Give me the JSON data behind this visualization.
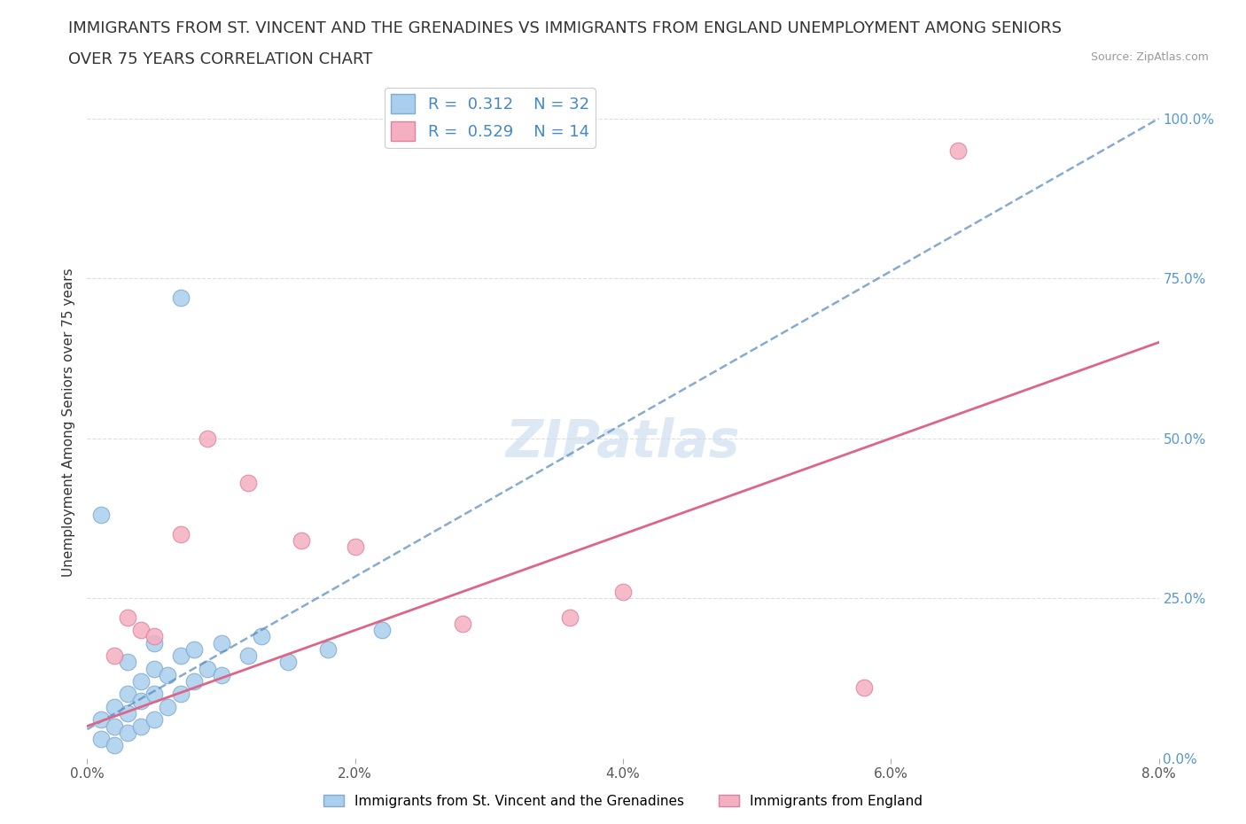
{
  "title_line1": "IMMIGRANTS FROM ST. VINCENT AND THE GRENADINES VS IMMIGRANTS FROM ENGLAND UNEMPLOYMENT AMONG SENIORS",
  "title_line2": "OVER 75 YEARS CORRELATION CHART",
  "source": "Source: ZipAtlas.com",
  "ylabel": "Unemployment Among Seniors over 75 years",
  "xlim": [
    0,
    0.08
  ],
  "ylim": [
    0,
    1.05
  ],
  "xtick_labels": [
    "0.0%",
    "2.0%",
    "4.0%",
    "6.0%",
    "8.0%"
  ],
  "xtick_values": [
    0.0,
    0.02,
    0.04,
    0.06,
    0.08
  ],
  "ytick_labels": [
    "0.0%",
    "25.0%",
    "50.0%",
    "75.0%",
    "100.0%"
  ],
  "ytick_values": [
    0.0,
    0.25,
    0.5,
    0.75,
    1.0
  ],
  "blue_label": "Immigrants from St. Vincent and the Grenadines",
  "pink_label": "Immigrants from England",
  "blue_R": 0.312,
  "blue_N": 32,
  "pink_R": 0.529,
  "pink_N": 14,
  "blue_color": "#aacfee",
  "blue_edge": "#80aad0",
  "pink_color": "#f4afc0",
  "pink_edge": "#e080a0",
  "blue_line_color": "#5588bb",
  "pink_line_color": "#dd6688",
  "watermark_color": "#ccddf0",
  "blue_scatter_x": [
    0.001,
    0.001,
    0.002,
    0.002,
    0.002,
    0.003,
    0.003,
    0.003,
    0.003,
    0.004,
    0.004,
    0.004,
    0.005,
    0.005,
    0.005,
    0.005,
    0.006,
    0.006,
    0.007,
    0.007,
    0.008,
    0.008,
    0.009,
    0.01,
    0.01,
    0.012,
    0.013,
    0.015,
    0.018,
    0.022,
    0.007,
    0.001
  ],
  "blue_scatter_y": [
    0.03,
    0.06,
    0.02,
    0.05,
    0.08,
    0.04,
    0.07,
    0.1,
    0.15,
    0.05,
    0.09,
    0.12,
    0.06,
    0.1,
    0.14,
    0.18,
    0.08,
    0.13,
    0.1,
    0.16,
    0.12,
    0.17,
    0.14,
    0.13,
    0.18,
    0.16,
    0.19,
    0.15,
    0.17,
    0.2,
    0.72,
    0.38
  ],
  "pink_scatter_x": [
    0.002,
    0.003,
    0.004,
    0.005,
    0.007,
    0.009,
    0.012,
    0.016,
    0.02,
    0.028,
    0.036,
    0.04,
    0.058,
    0.065
  ],
  "pink_scatter_y": [
    0.16,
    0.22,
    0.2,
    0.19,
    0.35,
    0.5,
    0.43,
    0.34,
    0.33,
    0.21,
    0.22,
    0.26,
    0.11,
    0.95
  ],
  "blue_trend_x": [
    0.0,
    0.08
  ],
  "blue_trend_y": [
    0.045,
    1.0
  ],
  "pink_trend_x": [
    0.0,
    0.08
  ],
  "pink_trend_y": [
    0.05,
    0.65
  ],
  "background_color": "#ffffff",
  "grid_color": "#dddddd",
  "title_fontsize": 13,
  "label_fontsize": 11,
  "tick_fontsize": 11,
  "legend_fontsize": 13,
  "watermark_fontsize": 42
}
